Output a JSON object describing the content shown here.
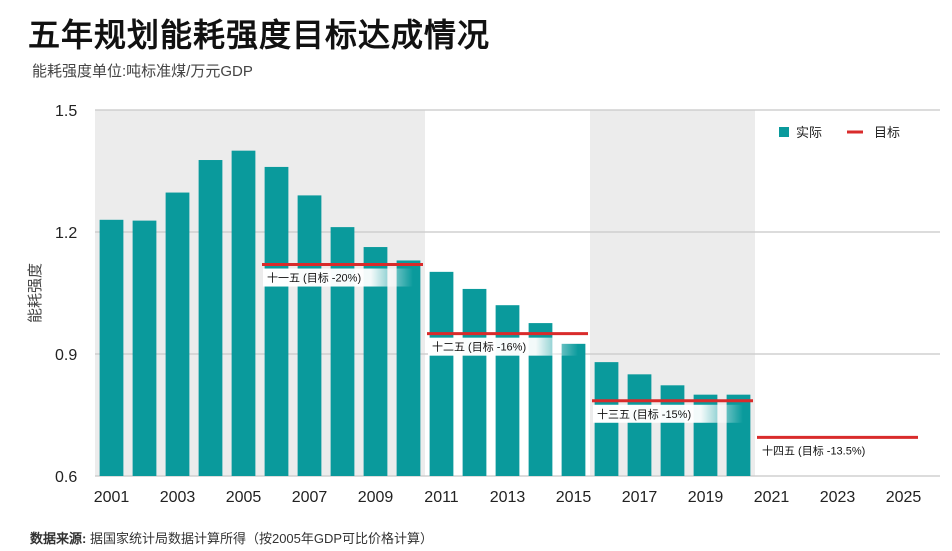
{
  "header": {
    "title": "五年规划能耗强度目标达成情况",
    "subtitle": "能耗强度单位:吨标准煤/万元GDP"
  },
  "source": {
    "label": "数据来源:",
    "text": "据国家统计局数据计算所得（按2005年GDP可比价格计算）"
  },
  "colors": {
    "actual": "#0a9a9c",
    "target": "#d92b2b",
    "band": "#ececec",
    "grid": "#c8c8c8"
  },
  "chart_data": {
    "type": "bar",
    "title": "五年规划能耗强度目标达成情况",
    "ylabel": "能耗强度",
    "ylim": [
      0.6,
      1.5
    ],
    "yticks": [
      "0.6",
      "0.9",
      "1.2",
      "1.5"
    ],
    "x": [
      2001,
      2002,
      2003,
      2004,
      2005,
      2006,
      2007,
      2008,
      2009,
      2010,
      2011,
      2012,
      2013,
      2014,
      2015,
      2016,
      2017,
      2018,
      2019,
      2020,
      2021,
      2022,
      2023,
      2024,
      2025
    ],
    "xticks": [
      "2001",
      "2003",
      "2005",
      "2007",
      "2009",
      "2011",
      "2013",
      "2015",
      "2017",
      "2019",
      "2021",
      "2023",
      "2025"
    ],
    "series": [
      {
        "name": "实际",
        "type": "bar",
        "values": [
          1.23,
          1.228,
          1.297,
          1.377,
          1.4,
          1.36,
          1.29,
          1.212,
          1.163,
          1.13,
          1.102,
          1.06,
          1.02,
          0.976,
          0.925,
          0.88,
          0.85,
          0.823,
          0.8,
          0.8,
          null,
          null,
          null,
          null,
          null
        ]
      },
      {
        "name": "目标",
        "type": "segment",
        "segments": [
          {
            "label": "十一五 (目标 -20%)",
            "from": 2006,
            "to": 2010,
            "value": 1.12
          },
          {
            "label": "十二五 (目标 -16%)",
            "from": 2011,
            "to": 2015,
            "value": 0.95
          },
          {
            "label": "十三五 (目标 -15%)",
            "from": 2016,
            "to": 2020,
            "value": 0.785
          },
          {
            "label": "十四五 (目标 -13.5%)",
            "from": 2021,
            "to": 2025,
            "value": 0.695
          }
        ]
      }
    ],
    "bands": [
      [
        2006,
        2010
      ],
      [
        2016,
        2020
      ]
    ],
    "legend": {
      "position": "top-right",
      "items": [
        "实际",
        "目标"
      ]
    },
    "grid": true
  }
}
